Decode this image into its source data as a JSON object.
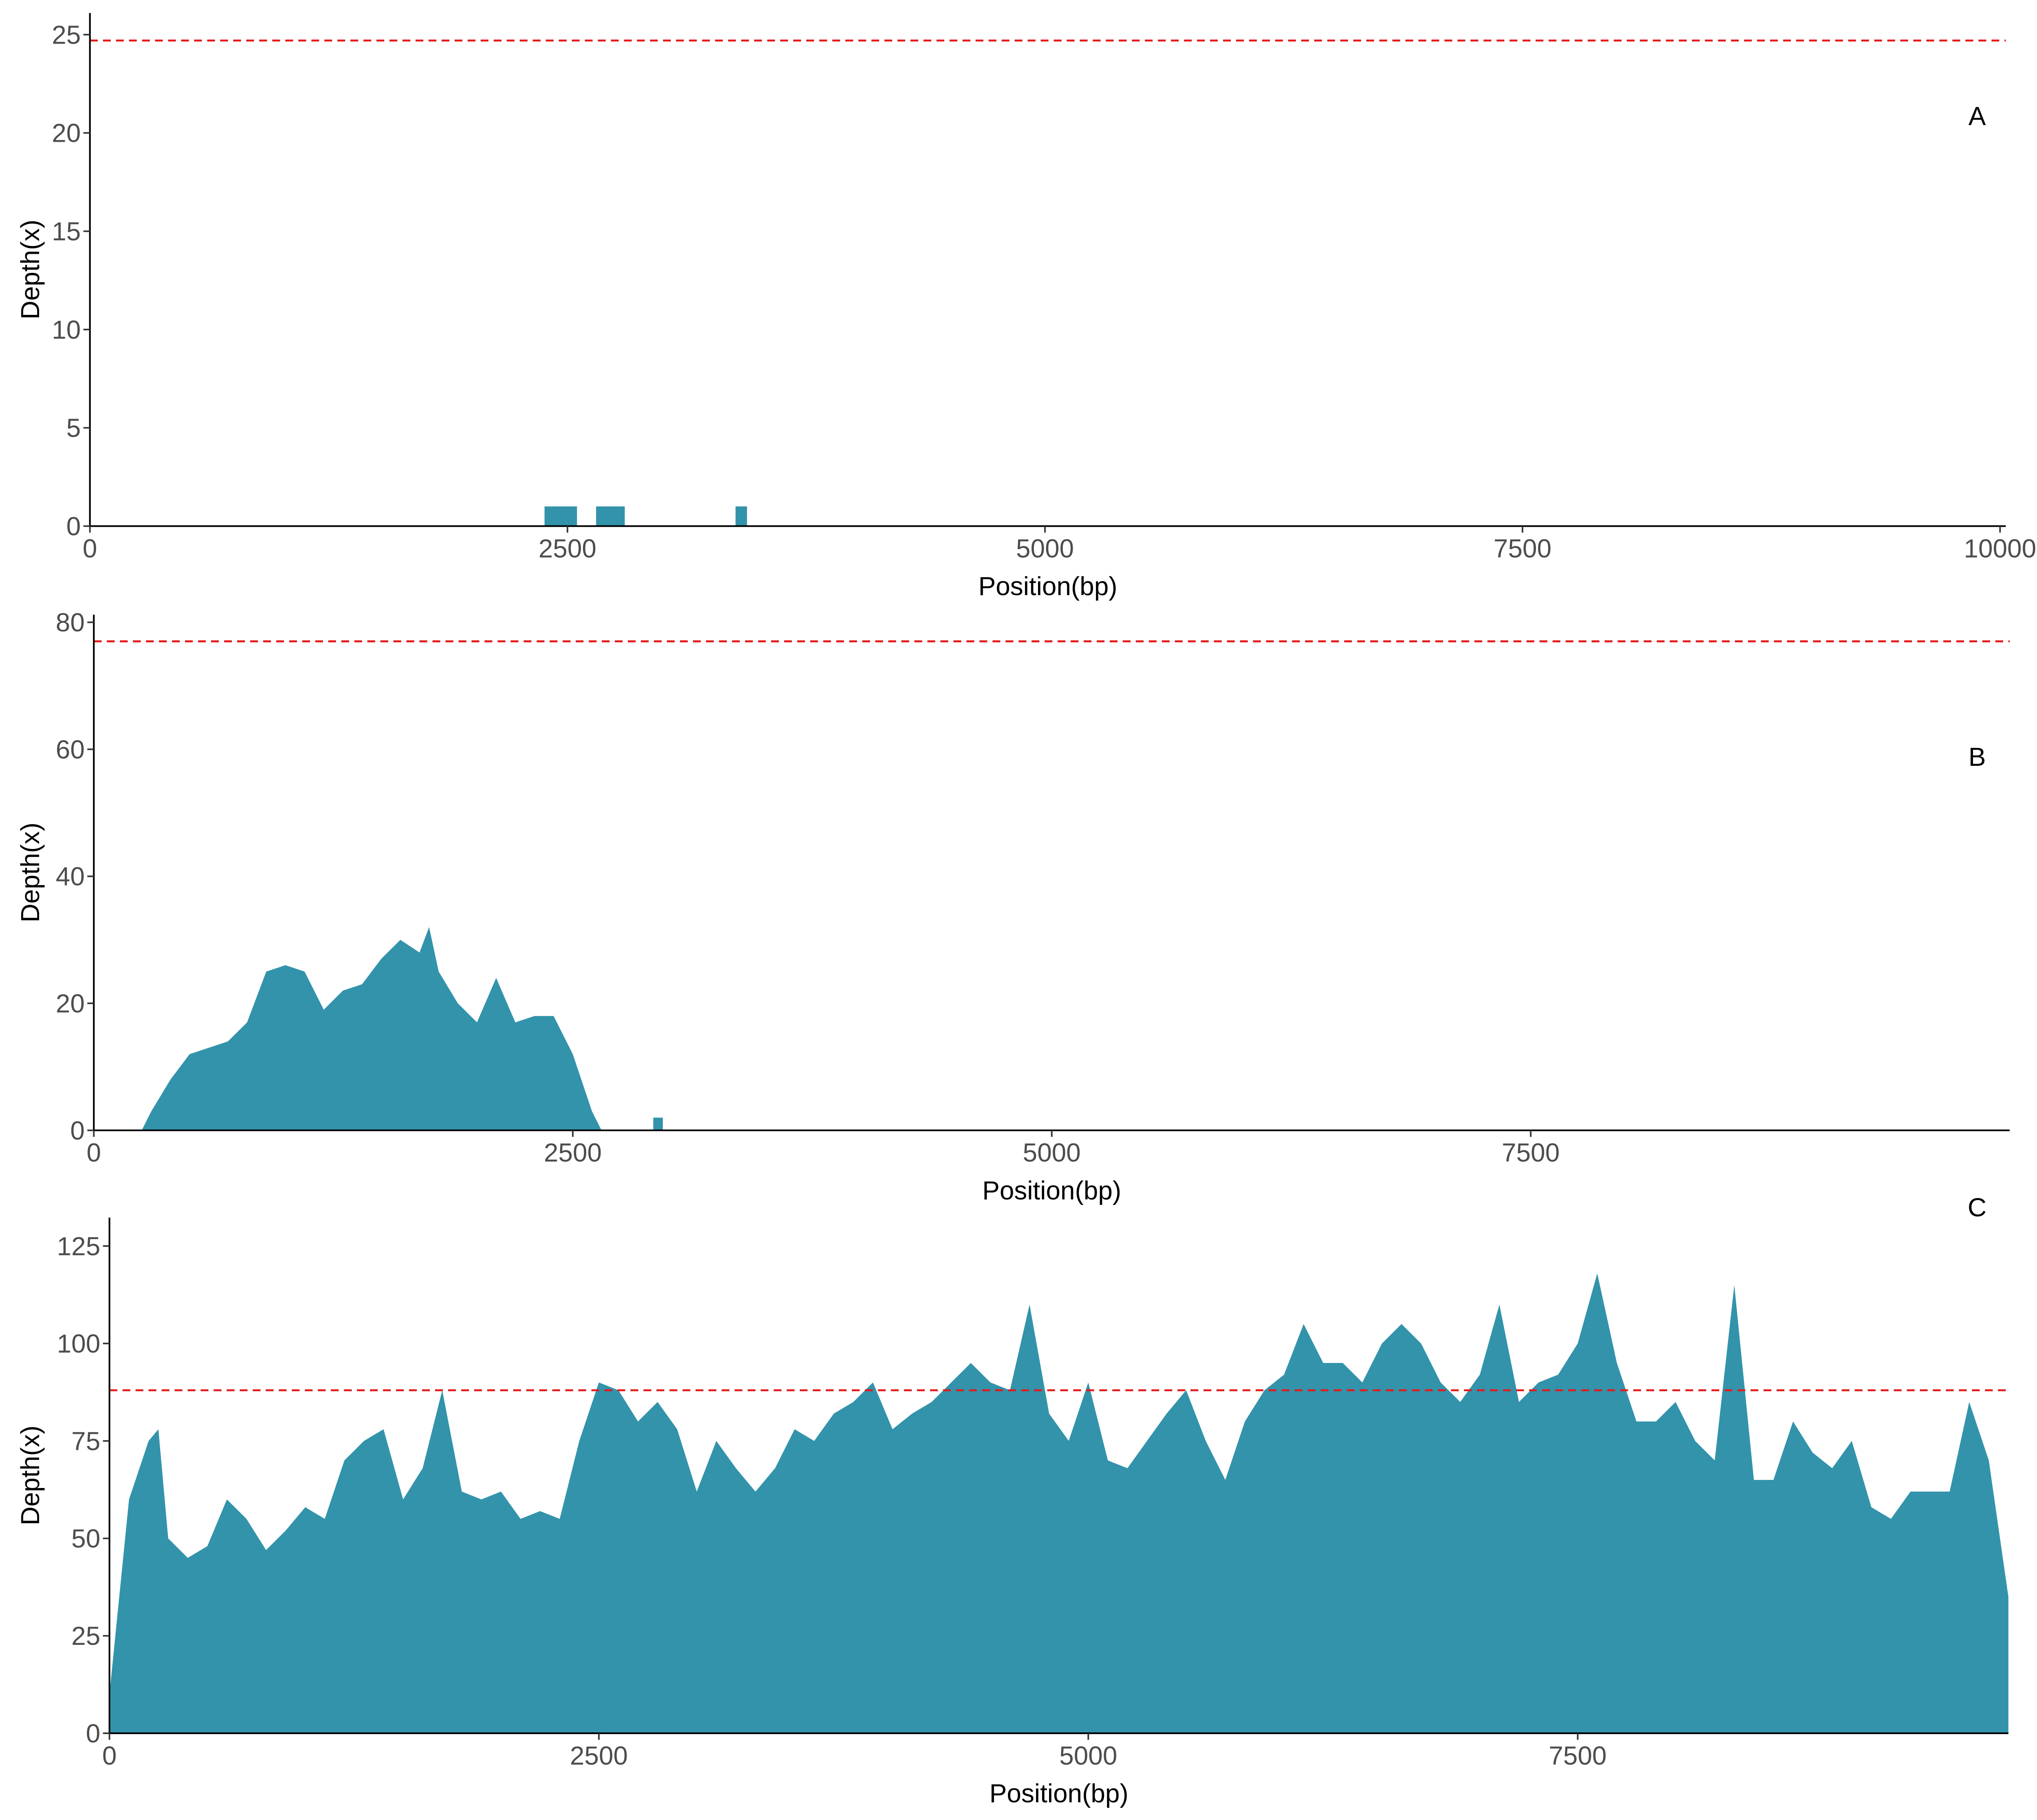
{
  "chart_data": [
    {
      "type": "area",
      "panel_label": "A",
      "x_label": "Position(bp)",
      "y_label": "Depth(x)",
      "xlim": [
        0,
        10030
      ],
      "ylim": [
        0,
        26.1
      ],
      "xticks": [
        0,
        2500,
        5000,
        7500,
        10000
      ],
      "yticks": [
        0,
        5,
        10,
        15,
        20,
        25
      ],
      "threshold": 24.7,
      "threshold_color": "#e41a1c",
      "series": [
        {
          "color": "#3293ab",
          "x": [
            2380,
            2380,
            2550,
            2550,
            2650,
            2650,
            2800,
            2800,
            3380,
            3380,
            3440,
            3440
          ],
          "values": [
            0,
            1,
            1,
            0,
            0,
            1,
            1,
            0,
            0,
            1,
            1,
            0
          ]
        }
      ]
    },
    {
      "type": "area",
      "panel_label": "B",
      "x_label": "Position(bp)",
      "y_label": "Depth(x)",
      "xlim": [
        0,
        10000
      ],
      "ylim": [
        0,
        81.2
      ],
      "xticks": [
        0,
        2500,
        5000,
        7500
      ],
      "yticks": [
        0,
        20,
        40,
        60,
        80
      ],
      "threshold": 77,
      "threshold_color": "#e41a1c",
      "series": [
        {
          "color": "#3293ab",
          "x": [
            250,
            300,
            400,
            500,
            600,
            700,
            800,
            900,
            1000,
            1100,
            1200,
            1300,
            1400,
            1500,
            1600,
            1700,
            1750,
            1800,
            1900,
            2000,
            2100,
            2200,
            2300,
            2400,
            2500,
            2600,
            2650,
            2920,
            2920,
            2970,
            2970
          ],
          "values": [
            0,
            3,
            8,
            12,
            13,
            14,
            17,
            25,
            26,
            25,
            19,
            22,
            23,
            27,
            30,
            28,
            32,
            25,
            20,
            17,
            24,
            17,
            18,
            18,
            12,
            3,
            0,
            0,
            2,
            2,
            0
          ]
        }
      ]
    },
    {
      "type": "area",
      "panel_label": "C",
      "x_label": "Position(bp)",
      "y_label": "Depth(x)",
      "xlim": [
        0,
        9700
      ],
      "ylim": [
        0,
        132.3
      ],
      "xticks": [
        0,
        2500,
        5000,
        7500
      ],
      "yticks": [
        0,
        25,
        50,
        75,
        100,
        125
      ],
      "threshold": 88,
      "threshold_color": "#e41a1c",
      "series": [
        {
          "color": "#3293ab",
          "x": [
            0,
            100,
            200,
            250,
            300,
            400,
            500,
            600,
            700,
            800,
            900,
            1000,
            1100,
            1200,
            1300,
            1400,
            1500,
            1600,
            1700,
            1800,
            1900,
            2000,
            2100,
            2200,
            2300,
            2400,
            2500,
            2600,
            2700,
            2800,
            2900,
            3000,
            3100,
            3200,
            3300,
            3400,
            3500,
            3600,
            3700,
            3800,
            3900,
            4000,
            4100,
            4200,
            4300,
            4400,
            4500,
            4600,
            4700,
            4800,
            4900,
            5000,
            5100,
            5200,
            5300,
            5400,
            5500,
            5600,
            5700,
            5800,
            5900,
            6000,
            6100,
            6200,
            6300,
            6400,
            6500,
            6600,
            6700,
            6800,
            6900,
            7000,
            7100,
            7200,
            7300,
            7400,
            7500,
            7600,
            7700,
            7800,
            7900,
            8000,
            8100,
            8200,
            8300,
            8400,
            8500,
            8600,
            8700,
            8800,
            8900,
            9000,
            9100,
            9200,
            9300,
            9400,
            9500,
            9600,
            9700
          ],
          "values": [
            10,
            60,
            75,
            78,
            50,
            45,
            48,
            60,
            55,
            47,
            52,
            58,
            55,
            70,
            75,
            78,
            60,
            68,
            88,
            62,
            60,
            62,
            55,
            57,
            55,
            75,
            90,
            88,
            80,
            85,
            78,
            62,
            75,
            68,
            62,
            68,
            78,
            75,
            82,
            85,
            90,
            78,
            82,
            85,
            90,
            95,
            90,
            88,
            110,
            82,
            75,
            90,
            70,
            68,
            75,
            82,
            88,
            75,
            65,
            80,
            88,
            92,
            105,
            95,
            95,
            90,
            100,
            105,
            100,
            90,
            85,
            92,
            110,
            85,
            90,
            92,
            100,
            118,
            95,
            80,
            80,
            85,
            75,
            70,
            115,
            65,
            65,
            80,
            72,
            68,
            75,
            58,
            55,
            62,
            62,
            62,
            85,
            70,
            35
          ]
        }
      ]
    }
  ]
}
